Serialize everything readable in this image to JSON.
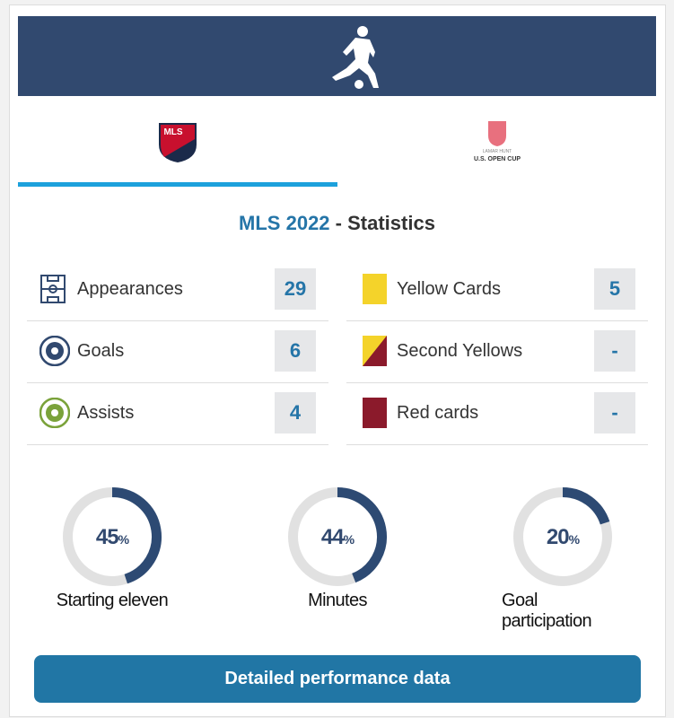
{
  "tabs": [
    {
      "logo_text": "MLS"
    },
    {
      "logo_top": "LAMAR HUNT",
      "logo_text": "U.S. OPEN CUP"
    }
  ],
  "title": {
    "competition": "MLS 2022",
    "suffix": "- Statistics"
  },
  "stats": {
    "left": [
      {
        "label": "Appearances",
        "value": 29
      },
      {
        "label": "Goals",
        "value": 6
      },
      {
        "label": "Assists",
        "value": 4
      }
    ],
    "right": [
      {
        "label": "Yellow Cards",
        "value": 5
      },
      {
        "label": "Second Yellows",
        "value": "-"
      },
      {
        "label": "Red cards",
        "value": "-"
      }
    ]
  },
  "circles": [
    {
      "value": 45,
      "unit": "%",
      "label": "Starting eleven"
    },
    {
      "value": 44,
      "unit": "%",
      "label": "Minutes"
    },
    {
      "value": 20,
      "unit": "%",
      "label": "Goal participation"
    }
  ],
  "button": "Detailed performance data"
}
